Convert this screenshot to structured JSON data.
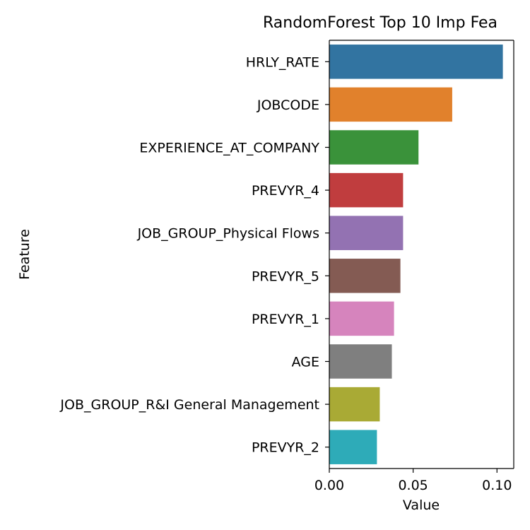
{
  "chart_data": {
    "type": "bar",
    "orientation": "horizontal",
    "title": "RandomForest Top 10 Imp Fea",
    "xlabel": "Value",
    "ylabel": "Feature",
    "xlim": [
      0.0,
      0.11
    ],
    "xticks": [
      "0.00",
      "0.05",
      "0.10"
    ],
    "xtick_values": [
      0.0,
      0.05,
      0.1
    ],
    "grid": false,
    "categories": [
      "HRLY_RATE",
      "JOBCODE",
      "EXPERIENCE_AT_COMPANY",
      "PREVYR_4",
      "JOB_GROUP_Physical Flows",
      "PREVYR_5",
      "PREVYR_1",
      "AGE",
      "JOB_GROUP_R&I General Management",
      "PREVYR_2"
    ],
    "values": [
      0.1035,
      0.0733,
      0.0532,
      0.044,
      0.044,
      0.0424,
      0.0386,
      0.0373,
      0.0301,
      0.0284
    ],
    "colors": [
      "#3274a1",
      "#e1812c",
      "#3a923a",
      "#c03d3e",
      "#9372b2",
      "#845b53",
      "#d684bd",
      "#7f7f7f",
      "#a9aa35",
      "#2eabb8"
    ]
  }
}
